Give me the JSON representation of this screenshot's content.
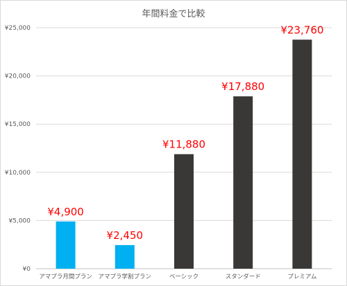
{
  "chart_data": {
    "type": "bar",
    "title": "年間料金で比較",
    "xlabel": "",
    "ylabel": "",
    "categories": [
      "アマプラ月間プラン",
      "アマプラ学割プラン",
      "ベーシック",
      "スタンダード",
      "プレミアム"
    ],
    "values": [
      4900,
      2450,
      11880,
      17880,
      23760
    ],
    "value_labels": [
      "¥4,900",
      "¥2,450",
      "¥11,880",
      "¥17,880",
      "¥23,760"
    ],
    "bar_colors": [
      "#00b0f0",
      "#00b0f0",
      "#3a3836",
      "#3a3836",
      "#3a3836"
    ],
    "label_color": "#ff0000",
    "ylim": [
      0,
      25000
    ],
    "yticks": [
      0,
      5000,
      10000,
      15000,
      20000,
      25000
    ],
    "ytick_labels": [
      "¥0",
      "¥5,000",
      "¥10,000",
      "¥15,000",
      "¥20,000",
      "¥25,000"
    ],
    "grid": true,
    "legend": "none"
  }
}
